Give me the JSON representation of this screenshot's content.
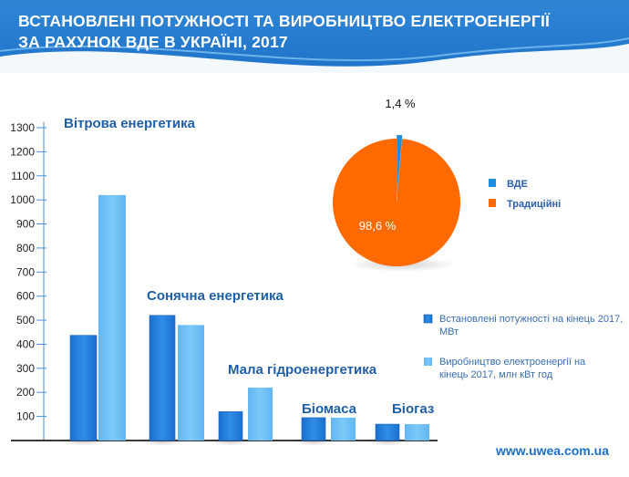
{
  "header": {
    "title_line1": "ВСТАНОВЛЕНІ ПОТУЖНОСТІ ТА ВИРОБНИЦТВО ЕЛЕКТРОЕНЕРГІЇ",
    "title_line2": "ЗА РАХУНОК ВДЕ В УКРАЇНІ, 2017"
  },
  "footer": {
    "url": "www.uwea.com.ua"
  },
  "colors": {
    "header_blue": "#2080d0",
    "capacity_bar": "#2f8ee6",
    "production_bar": "#7cc8f8",
    "category_label": "#1f5fa8",
    "pie_traditional": "#ff6a00",
    "pie_res": "#1f8de0"
  },
  "chart_data": [
    {
      "type": "bar",
      "categories": [
        "Вітрова енергетика",
        "Сонячна енергетика",
        "Мала гідроенергетика",
        "Біомаса",
        "Біогаз"
      ],
      "series": [
        {
          "name": "Встановлені потужності на кінець 2017, МВт",
          "values": [
            437,
            520,
            120,
            95,
            68
          ]
        },
        {
          "name": "Виробництво електроенергії на кінець 2017, млн кВт год",
          "values": [
            1020,
            480,
            220,
            95,
            68
          ]
        }
      ],
      "yticks": [
        100,
        200,
        300,
        400,
        500,
        600,
        700,
        800,
        900,
        1000,
        1100,
        1200,
        1300
      ],
      "ylim": [
        0,
        1300
      ],
      "legend": "bottom-right"
    },
    {
      "type": "pie",
      "labels": [
        "ВДЕ",
        "Традиційні"
      ],
      "values": [
        1.4,
        98.6
      ],
      "data_labels": [
        "1,4 %",
        "98,6 %"
      ],
      "legend": "right"
    }
  ]
}
